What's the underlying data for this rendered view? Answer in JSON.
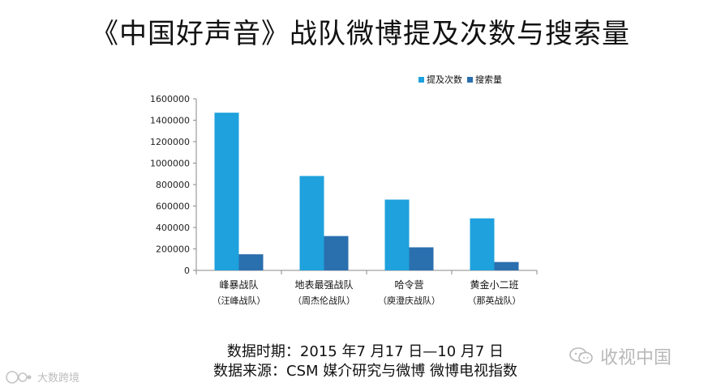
{
  "title": "《中国好声音》战队微博提及次数与搜索量",
  "chart_data": {
    "type": "bar",
    "title": "《中国好声音》战队微博提及次数与搜索量",
    "categories": [
      "峰暴战队",
      "地表最强战队",
      "哈令营",
      "黄金小二班"
    ],
    "category_sublabels": [
      "（汪峰战队）",
      "（周杰伦战队）",
      "（庾澄庆战队）",
      "（那英战队）"
    ],
    "series": [
      {
        "name": "提及次数",
        "values": [
          1470000,
          880000,
          660000,
          485000
        ],
        "color": "#1ea1dd"
      },
      {
        "name": "搜索量",
        "values": [
          150000,
          320000,
          215000,
          78000
        ],
        "color": "#2a6fae"
      }
    ],
    "ylim": [
      0,
      1600000
    ],
    "yticks": [
      0,
      200000,
      400000,
      600000,
      800000,
      1000000,
      1200000,
      1400000,
      1600000
    ],
    "xlabel": "",
    "ylabel": "",
    "grid": false,
    "legend_position": "top-right"
  },
  "footer": {
    "period": "数据时期：2015 年7 月17 日—10 月7 日",
    "source": "数据来源：CSM 媒介研究与微博 微博电视指数"
  },
  "watermarks": {
    "right": "收视中国",
    "left": "大数跨境"
  }
}
